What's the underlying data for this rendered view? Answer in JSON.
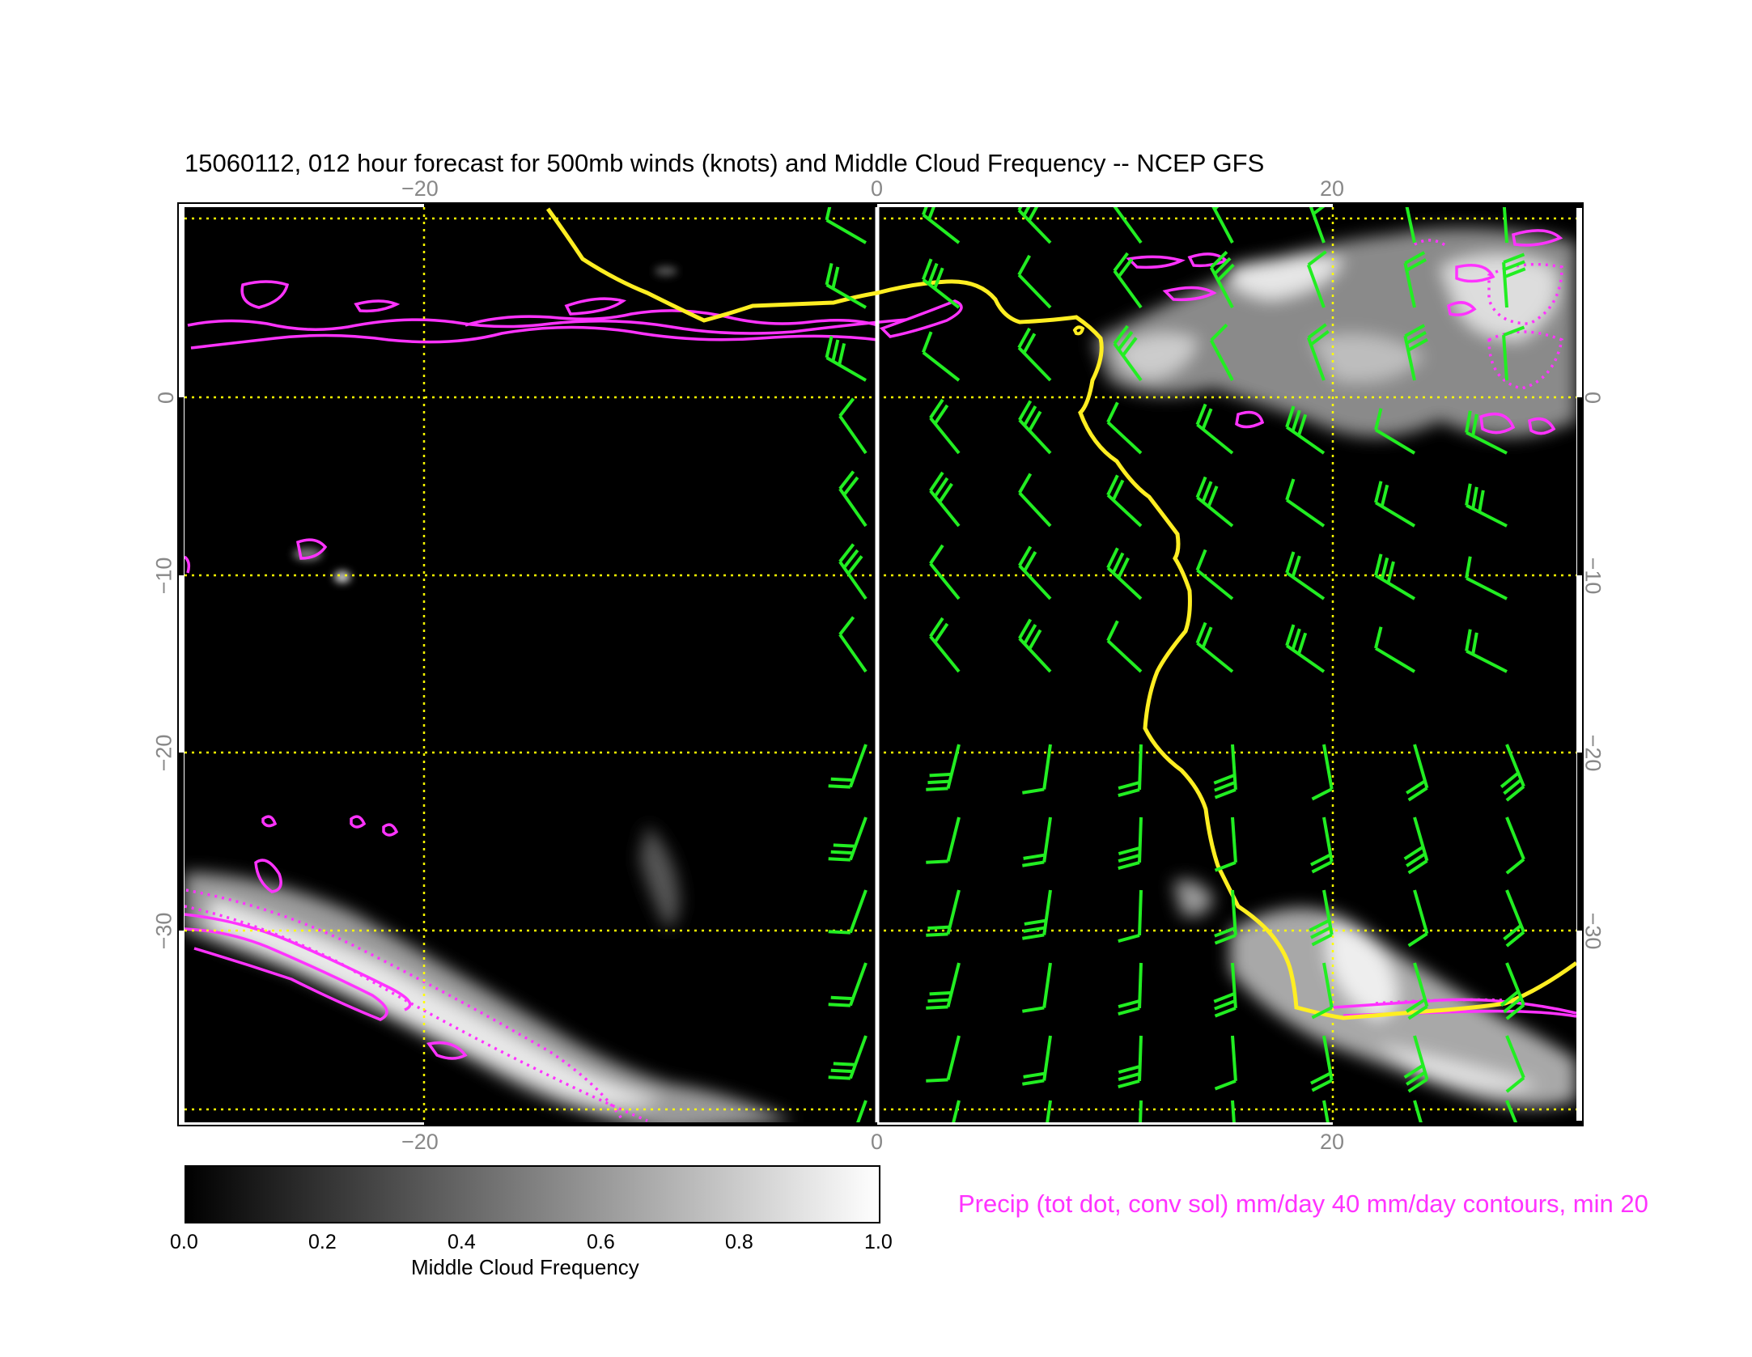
{
  "title": "15060112, 012 hour forecast for 500mb winds (knots) and Middle Cloud Frequency -- NCEP GFS",
  "longitude_ticks": [
    "−20",
    "0",
    "20"
  ],
  "latitude_ticks": [
    "0",
    "−10",
    "−20",
    "−30"
  ],
  "colorbar": {
    "title": "Middle Cloud Frequency",
    "ticks": [
      "0.0",
      "0.2",
      "0.4",
      "0.6",
      "0.8",
      "1.0"
    ]
  },
  "precip_note": "Precip (tot dot, conv sol) mm/day 40 mm/day contours, min 20",
  "colors": {
    "background": "#000000",
    "gridlines": "#ffff00",
    "coastline": "#ffee22",
    "wind_barbs": "#22ee22",
    "precip_contours": "#ff33ff",
    "meridian_0": "#ffffff"
  }
}
